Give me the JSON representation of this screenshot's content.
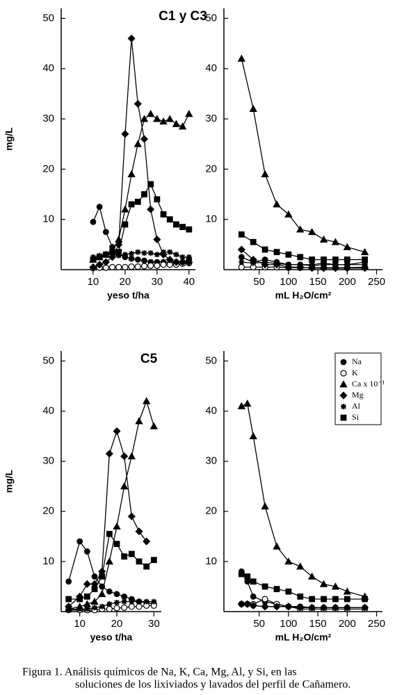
{
  "chart_data": [
    {
      "type": "line",
      "title": "C1 y C3",
      "ylabel": "mg/L",
      "xlabel": "yeso t/ha",
      "x": [
        10,
        12,
        14,
        16,
        18,
        20,
        22,
        24,
        26,
        28,
        30,
        32,
        34,
        36,
        38,
        40
      ],
      "xlim": [
        0,
        42
      ],
      "xticks": [
        10,
        20,
        30,
        40
      ],
      "ylim": [
        0,
        52
      ],
      "yticks": [
        10,
        20,
        30,
        40,
        50
      ],
      "series": [
        {
          "marker": "circle",
          "color": "#000",
          "values": [
            9.5,
            12.5,
            7.5,
            4.5,
            3,
            2.5,
            2.2,
            2,
            1.8,
            1.5,
            1.5,
            1.5,
            1.3,
            1.5,
            1.5,
            2
          ]
        },
        {
          "marker": "open-circle",
          "color": "#000",
          "values": [
            0.3,
            0.4,
            0.4,
            0.5,
            0.5,
            0.5,
            0.6,
            0.6,
            0.7,
            0.8,
            0.8,
            1,
            1,
            1,
            1.2,
            1.3
          ]
        },
        {
          "marker": "triangle",
          "color": "#000",
          "values": [
            2,
            2.5,
            3,
            3.5,
            6,
            12,
            19,
            25,
            30,
            31,
            30,
            29.5,
            30,
            29,
            28.5,
            31
          ]
        },
        {
          "marker": "diamond",
          "color": "#000",
          "values": [
            0.5,
            1,
            1.5,
            2.5,
            5,
            27,
            46,
            33,
            26,
            12,
            6,
            3,
            2,
            1.5,
            1.5,
            1.5
          ]
        },
        {
          "marker": "asterisk",
          "color": "#000",
          "values": [
            2.5,
            2.8,
            3,
            3,
            2.8,
            3,
            3.2,
            3.5,
            3.3,
            3.3,
            3,
            3.5,
            3.5,
            3,
            2.5,
            2.5
          ]
        },
        {
          "marker": "square",
          "color": "#000",
          "values": [
            2,
            2.5,
            3,
            3.5,
            3.5,
            9,
            13,
            13.5,
            15,
            17,
            14,
            11,
            10,
            9,
            8.5,
            8
          ]
        }
      ]
    },
    {
      "type": "line",
      "xlabel": "mL H₂O/cm²",
      "x": [
        20,
        40,
        60,
        80,
        100,
        120,
        140,
        160,
        180,
        200,
        230
      ],
      "xlim": [
        -10,
        260
      ],
      "xticks": [
        50,
        100,
        150,
        200,
        250
      ],
      "ylim": [
        0,
        52
      ],
      "yticks": [
        10,
        20,
        30,
        40,
        50
      ],
      "series": [
        {
          "marker": "circle",
          "color": "#000",
          "values": [
            2.5,
            1.5,
            2,
            1.5,
            1,
            1,
            0.8,
            1,
            1,
            1,
            1.5
          ]
        },
        {
          "marker": "open-circle",
          "color": "#000",
          "values": [
            0.5,
            0.5,
            0.5,
            0.5,
            0.4,
            0.4,
            0.4,
            0.4,
            0.4,
            0.4,
            0.5
          ]
        },
        {
          "marker": "triangle",
          "color": "#000",
          "values": [
            42,
            32,
            19,
            13,
            11,
            8,
            7.5,
            6,
            5.5,
            4.5,
            3.5
          ]
        },
        {
          "marker": "diamond",
          "color": "#000",
          "values": [
            4,
            2,
            1,
            1,
            0.5,
            0.5,
            0.3,
            0.3,
            0.3,
            0.3,
            0.3
          ]
        },
        {
          "marker": "asterisk",
          "color": "#000",
          "values": [
            1.5,
            1.3,
            1.5,
            1.2,
            1,
            1,
            1,
            1.3,
            1,
            1,
            1
          ]
        },
        {
          "marker": "square",
          "color": "#000",
          "values": [
            7,
            5.5,
            4,
            3.5,
            3,
            2.5,
            2,
            2,
            2,
            2,
            2
          ]
        }
      ]
    },
    {
      "type": "line",
      "title": "C5",
      "ylabel": "mg/L",
      "xlabel": "yeso t/ha",
      "x": [
        7,
        10,
        12,
        14,
        16,
        18,
        20,
        22,
        24,
        26,
        28,
        30
      ],
      "xlim": [
        5,
        32
      ],
      "xticks": [
        10,
        20,
        30
      ],
      "ylim": [
        0,
        52
      ],
      "yticks": [
        10,
        20,
        30,
        40,
        50
      ],
      "series": [
        {
          "marker": "circle",
          "color": "#000",
          "values": [
            6,
            14,
            12,
            7,
            5,
            4,
            3.5,
            3,
            2.5,
            2,
            1.8,
            1.5
          ]
        },
        {
          "marker": "open-circle",
          "color": "#000",
          "values": [
            0.3,
            0.3,
            0.3,
            0.3,
            0.5,
            0.5,
            0.7,
            0.8,
            1,
            1,
            1.2,
            1.2
          ]
        },
        {
          "marker": "triangle",
          "color": "#000",
          "values": [
            0.5,
            1,
            1.5,
            2,
            3.5,
            10,
            17,
            25,
            31,
            38,
            42,
            37
          ]
        },
        {
          "marker": "diamond",
          "color": "#000",
          "values": [
            1,
            3,
            5.5,
            5.5,
            8,
            31.5,
            36,
            31,
            19,
            16,
            14,
            null
          ]
        },
        {
          "marker": "asterisk",
          "color": "#000",
          "values": [
            0.5,
            0.5,
            0.5,
            0.8,
            1,
            1.5,
            1.8,
            2,
            2,
            2,
            2,
            2
          ]
        },
        {
          "marker": "square",
          "color": "#000",
          "values": [
            2.5,
            2.5,
            3,
            4.5,
            7,
            15.5,
            13.5,
            11,
            11.5,
            10,
            9,
            10.3
          ]
        }
      ]
    },
    {
      "type": "line",
      "xlabel": "mL H₂O/cm²",
      "legend": "upper right",
      "x": [
        20,
        30,
        40,
        60,
        80,
        100,
        120,
        140,
        160,
        180,
        200,
        230
      ],
      "xlim": [
        -10,
        260
      ],
      "xticks": [
        50,
        100,
        150,
        200,
        250
      ],
      "ylim": [
        0,
        52
      ],
      "yticks": [
        10,
        20,
        30,
        40,
        50
      ],
      "series": [
        {
          "name": "Na",
          "marker": "circle",
          "color": "#000",
          "values": [
            8,
            6,
            3,
            2,
            1.5,
            1,
            1,
            0.8,
            0.8,
            0.8,
            0.8,
            0.8
          ]
        },
        {
          "name": "K",
          "marker": "open-circle",
          "color": "#000",
          "values": [
            1.5,
            1.5,
            1.5,
            2.5,
            1.5,
            1,
            0.5,
            0.5,
            0.5,
            0.5,
            0.5,
            0.5
          ]
        },
        {
          "name": "Ca x 10⁻¹",
          "marker": "triangle",
          "color": "#000",
          "values": [
            41,
            41.5,
            35,
            21,
            13,
            10,
            9,
            7,
            5.5,
            5,
            4,
            3
          ]
        },
        {
          "name": "Mg",
          "marker": "diamond",
          "color": "#000",
          "values": [
            1.5,
            1.5,
            1.2,
            1,
            1,
            1,
            0.8,
            0.8,
            0.8,
            0.8,
            0.8,
            0.8
          ]
        },
        {
          "name": "Al",
          "marker": "asterisk",
          "color": "#000",
          "values": [
            1.5,
            1.5,
            1.2,
            1,
            1,
            1,
            1,
            0.8,
            0.8,
            0.8,
            0.8,
            0.8
          ]
        },
        {
          "name": "Si",
          "marker": "square",
          "color": "#000",
          "values": [
            7.5,
            7,
            6,
            5,
            4.5,
            4,
            3,
            2.5,
            2.5,
            2.5,
            2.5,
            2.5
          ]
        }
      ]
    }
  ],
  "caption": [
    "Figura 1. Análisis químicos de Na, K, Ca, Mg, Al, y Si, en las",
    "soluciones de los lixiviados  y lavados del perfil de Cañamero."
  ]
}
